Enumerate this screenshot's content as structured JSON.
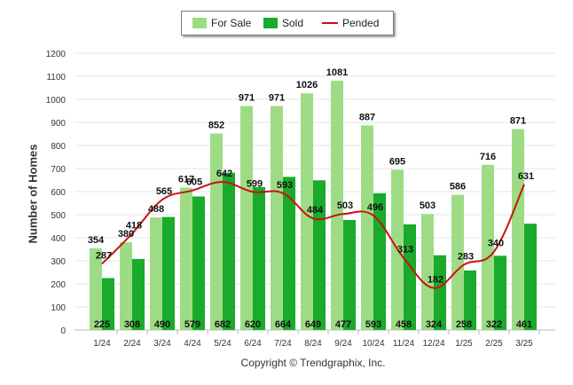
{
  "chart_data": {
    "type": "bar",
    "title": "",
    "xlabel": "",
    "ylabel": "Number of Homes",
    "ylim": [
      0,
      1200
    ],
    "yticks": [
      0,
      100,
      200,
      300,
      400,
      500,
      600,
      700,
      800,
      900,
      1000,
      1100,
      1200
    ],
    "grid": true,
    "legend_position": "top-center",
    "categories": [
      "1/24",
      "2/24",
      "3/24",
      "4/24",
      "5/24",
      "6/24",
      "7/24",
      "8/24",
      "9/24",
      "10/24",
      "11/24",
      "12/24",
      "1/25",
      "2/25",
      "3/25"
    ],
    "series": [
      {
        "name": "For Sale",
        "type": "bar",
        "color": "#9ddc84",
        "values": [
          354,
          380,
          488,
          617,
          852,
          971,
          971,
          1026,
          1081,
          887,
          695,
          503,
          586,
          716,
          871
        ]
      },
      {
        "name": "Sold",
        "type": "bar",
        "color": "#1aaa2c",
        "values": [
          225,
          308,
          490,
          579,
          682,
          620,
          664,
          649,
          477,
          593,
          458,
          324,
          258,
          322,
          461
        ]
      },
      {
        "name": "Pended",
        "type": "line",
        "color": "#cc1111",
        "values": [
          287,
          418,
          565,
          605,
          642,
          599,
          593,
          484,
          503,
          496,
          313,
          182,
          283,
          340,
          631
        ]
      }
    ]
  },
  "footer": {
    "copyright": "Copyright © Trendgraphix, Inc."
  }
}
